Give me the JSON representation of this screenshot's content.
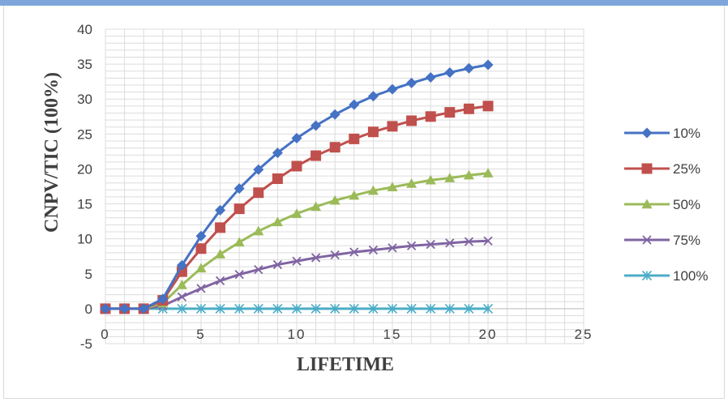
{
  "chart_data": {
    "type": "line",
    "xlabel": "LIFETIME",
    "ylabel": "CNPV/TIC (100%)",
    "xlim": [
      0,
      25
    ],
    "ylim": [
      -5,
      40
    ],
    "x_ticks": [
      0,
      5,
      10,
      15,
      20,
      25
    ],
    "y_ticks": [
      -5,
      0,
      5,
      10,
      15,
      20,
      25,
      30,
      35,
      40
    ],
    "grid": true,
    "legend_position": "right",
    "x": [
      0,
      1,
      2,
      3,
      4,
      5,
      6,
      7,
      8,
      9,
      10,
      11,
      12,
      13,
      14,
      15,
      16,
      17,
      18,
      19,
      20
    ],
    "series": [
      {
        "name": "10%",
        "color": "#4472c4",
        "marker": "diamond",
        "values": [
          0,
          0,
          0,
          1.4,
          6.2,
          10.4,
          14.1,
          17.2,
          19.9,
          22.3,
          24.4,
          26.2,
          27.8,
          29.2,
          30.4,
          31.4,
          32.3,
          33.1,
          33.8,
          34.4,
          34.9
        ]
      },
      {
        "name": "25%",
        "color": "#c0504d",
        "marker": "square",
        "values": [
          0,
          0,
          0,
          1.2,
          5.3,
          8.6,
          11.6,
          14.3,
          16.6,
          18.6,
          20.4,
          21.9,
          23.1,
          24.3,
          25.3,
          26.1,
          26.9,
          27.5,
          28.1,
          28.6,
          29.0
        ]
      },
      {
        "name": "50%",
        "color": "#9bbb59",
        "marker": "triangle",
        "values": [
          0,
          0,
          0,
          0.8,
          3.4,
          5.8,
          7.8,
          9.5,
          11.1,
          12.4,
          13.6,
          14.6,
          15.5,
          16.2,
          16.9,
          17.4,
          17.9,
          18.4,
          18.7,
          19.1,
          19.4
        ]
      },
      {
        "name": "75%",
        "color": "#8064a2",
        "marker": "x",
        "values": [
          0,
          0,
          0,
          0.4,
          1.7,
          2.9,
          4.0,
          4.9,
          5.6,
          6.3,
          6.8,
          7.3,
          7.7,
          8.1,
          8.4,
          8.7,
          9.0,
          9.2,
          9.4,
          9.6,
          9.7
        ]
      },
      {
        "name": "100%",
        "color": "#4bacc6",
        "marker": "star",
        "values": [
          0,
          0,
          0,
          0,
          0,
          0,
          0,
          0,
          0,
          0,
          0,
          0,
          0,
          0,
          0,
          0,
          0,
          0,
          0,
          0,
          0
        ]
      }
    ]
  }
}
